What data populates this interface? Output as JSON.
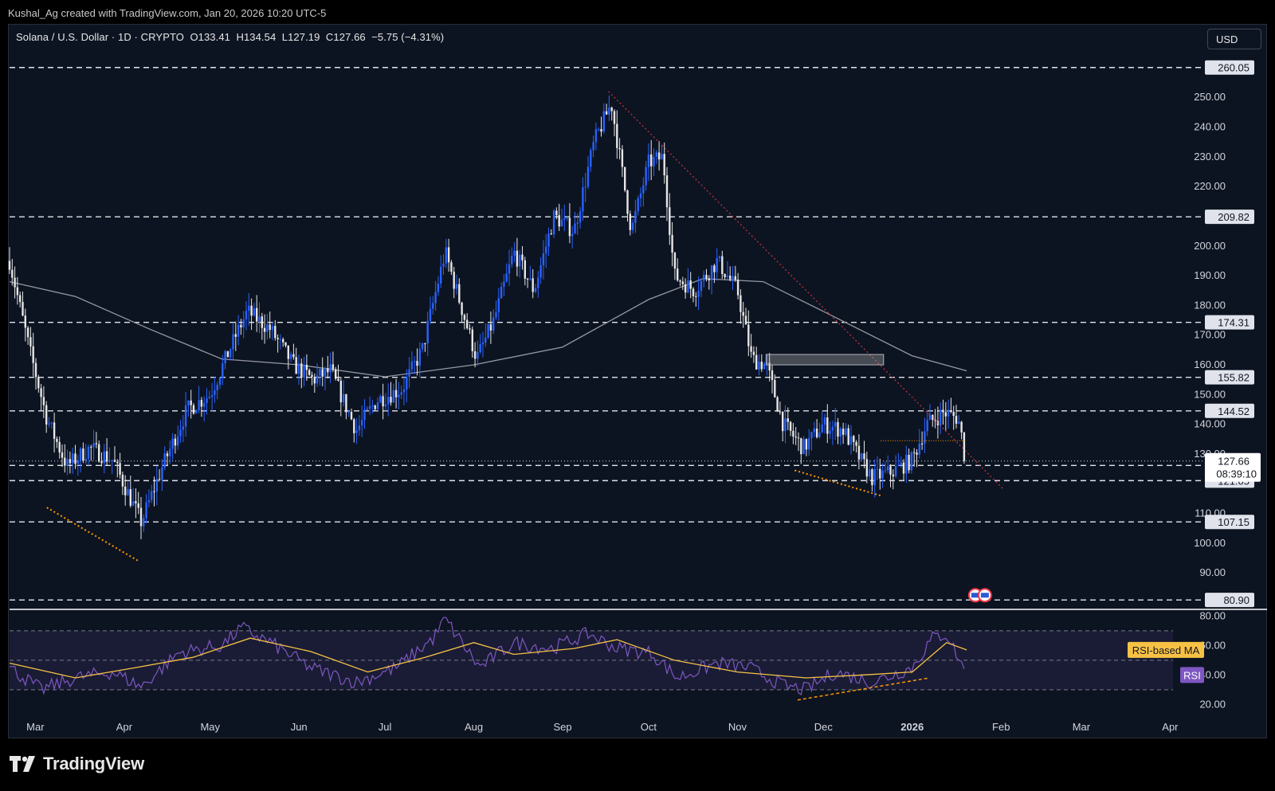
{
  "header": {
    "credit": "Kushal_Ag created with TradingView.com, Jan 20, 2026 10:20 UTC-5"
  },
  "legend": {
    "symbol": "Solana / U.S. Dollar · 1D · CRYPTO",
    "open": "O133.41",
    "high": "H134.54",
    "low": "L127.19",
    "close": "C127.66",
    "change": "−5.75 (−4.31%)"
  },
  "currency_button": "USD",
  "colors": {
    "background": "#0d1421",
    "up_candle": "#2962ff",
    "down_candle": "#e6e6e6",
    "trendline": "#f23645",
    "ma": "#9598a1",
    "rsi": "#7e57c2",
    "rsi_ma": "#f7c244",
    "support": "#ff9800"
  },
  "footer": {
    "brand": "TradingView"
  },
  "chart_data": [
    {
      "type": "candlestick",
      "title": "Solana / U.S. Dollar · 1D · CRYPTO",
      "x_tick_labels": [
        "Mar",
        "Apr",
        "May",
        "Jun",
        "Jul",
        "Aug",
        "Sep",
        "Oct",
        "Nov",
        "Dec",
        "2026",
        "Feb",
        "Mar",
        "Apr"
      ],
      "y_tick_labels": [
        "250.00",
        "240.00",
        "230.00",
        "220.00",
        "200.00",
        "190.00",
        "180.00",
        "170.00",
        "160.00",
        "150.00",
        "140.00",
        "130.00",
        "110.00",
        "100.00",
        "90.00"
      ],
      "ylim": [
        78,
        264
      ],
      "price_levels": [
        "260.05",
        "209.82",
        "174.31",
        "155.82",
        "144.52",
        "126.15",
        "121.05",
        "107.15",
        "80.90"
      ],
      "last_price": {
        "value": "127.66",
        "countdown": "08:39:10"
      },
      "price_path": [
        {
          "date": "2025-02-20",
          "close": 195
        },
        {
          "date": "2025-02-27",
          "close": 165
        },
        {
          "date": "2025-03-05",
          "close": 142
        },
        {
          "date": "2025-03-12",
          "close": 126
        },
        {
          "date": "2025-03-20",
          "close": 132
        },
        {
          "date": "2025-03-28",
          "close": 128
        },
        {
          "date": "2025-04-07",
          "close": 107
        },
        {
          "date": "2025-04-14",
          "close": 125
        },
        {
          "date": "2025-04-23",
          "close": 145
        },
        {
          "date": "2025-05-01",
          "close": 150
        },
        {
          "date": "2025-05-10",
          "close": 170
        },
        {
          "date": "2025-05-14",
          "close": 178
        },
        {
          "date": "2025-05-22",
          "close": 172
        },
        {
          "date": "2025-05-30",
          "close": 160
        },
        {
          "date": "2025-06-06",
          "close": 155
        },
        {
          "date": "2025-06-12",
          "close": 158
        },
        {
          "date": "2025-06-21",
          "close": 138
        },
        {
          "date": "2025-06-28",
          "close": 148
        },
        {
          "date": "2025-07-07",
          "close": 152
        },
        {
          "date": "2025-07-14",
          "close": 165
        },
        {
          "date": "2025-07-22",
          "close": 198
        },
        {
          "date": "2025-08-02",
          "close": 162
        },
        {
          "date": "2025-08-08",
          "close": 175
        },
        {
          "date": "2025-08-15",
          "close": 198
        },
        {
          "date": "2025-08-22",
          "close": 185
        },
        {
          "date": "2025-08-29",
          "close": 210
        },
        {
          "date": "2025-09-05",
          "close": 205
        },
        {
          "date": "2025-09-12",
          "close": 235
        },
        {
          "date": "2025-09-18",
          "close": 248
        },
        {
          "date": "2025-09-25",
          "close": 205
        },
        {
          "date": "2025-10-01",
          "close": 228
        },
        {
          "date": "2025-10-06",
          "close": 230
        },
        {
          "date": "2025-10-10",
          "close": 190
        },
        {
          "date": "2025-10-17",
          "close": 185
        },
        {
          "date": "2025-10-25",
          "close": 195
        },
        {
          "date": "2025-11-01",
          "close": 185
        },
        {
          "date": "2025-11-06",
          "close": 162
        },
        {
          "date": "2025-11-11",
          "close": 160
        },
        {
          "date": "2025-11-17",
          "close": 140
        },
        {
          "date": "2025-11-24",
          "close": 132
        },
        {
          "date": "2025-12-01",
          "close": 140
        },
        {
          "date": "2025-12-08",
          "close": 138
        },
        {
          "date": "2025-12-14",
          "close": 128
        },
        {
          "date": "2025-12-18",
          "close": 122
        },
        {
          "date": "2025-12-25",
          "close": 124
        },
        {
          "date": "2026-01-01",
          "close": 128
        },
        {
          "date": "2026-01-06",
          "close": 140
        },
        {
          "date": "2026-01-12",
          "close": 144
        },
        {
          "date": "2026-01-17",
          "close": 142
        },
        {
          "date": "2026-01-20",
          "close": 127.66
        }
      ],
      "moving_average": [
        {
          "date": "2025-02-20",
          "value": 188
        },
        {
          "date": "2025-03-15",
          "value": 183
        },
        {
          "date": "2025-04-10",
          "value": 172
        },
        {
          "date": "2025-05-05",
          "value": 162
        },
        {
          "date": "2025-06-01",
          "value": 160
        },
        {
          "date": "2025-07-01",
          "value": 156
        },
        {
          "date": "2025-08-01",
          "value": 160
        },
        {
          "date": "2025-09-01",
          "value": 166
        },
        {
          "date": "2025-10-01",
          "value": 182
        },
        {
          "date": "2025-10-20",
          "value": 189
        },
        {
          "date": "2025-11-10",
          "value": 188
        },
        {
          "date": "2025-12-01",
          "value": 178
        },
        {
          "date": "2026-01-01",
          "value": 163
        },
        {
          "date": "2026-01-20",
          "value": 158
        }
      ],
      "trendline": {
        "from": {
          "date": "2025-09-17",
          "price": 252
        },
        "to": {
          "date": "2026-02-02",
          "price": 118
        }
      }
    },
    {
      "type": "line",
      "title": "RSI",
      "y_tick_labels": [
        "80.00",
        "60.00",
        "40.00",
        "20.00"
      ],
      "ylim": [
        18,
        84
      ],
      "series": [
        {
          "name": "RSI",
          "values": [
            {
              "date": "2025-02-20",
              "value": 45
            },
            {
              "date": "2025-03-03",
              "value": 30
            },
            {
              "date": "2025-03-15",
              "value": 38
            },
            {
              "date": "2025-03-28",
              "value": 42
            },
            {
              "date": "2025-04-07",
              "value": 32
            },
            {
              "date": "2025-04-20",
              "value": 55
            },
            {
              "date": "2025-05-05",
              "value": 60
            },
            {
              "date": "2025-05-12",
              "value": 72
            },
            {
              "date": "2025-05-22",
              "value": 62
            },
            {
              "date": "2025-06-05",
              "value": 45
            },
            {
              "date": "2025-06-21",
              "value": 35
            },
            {
              "date": "2025-07-05",
              "value": 45
            },
            {
              "date": "2025-07-18",
              "value": 65
            },
            {
              "date": "2025-07-22",
              "value": 78
            },
            {
              "date": "2025-08-03",
              "value": 45
            },
            {
              "date": "2025-08-15",
              "value": 62
            },
            {
              "date": "2025-08-28",
              "value": 58
            },
            {
              "date": "2025-09-10",
              "value": 68
            },
            {
              "date": "2025-09-20",
              "value": 58
            },
            {
              "date": "2025-10-02",
              "value": 55
            },
            {
              "date": "2025-10-11",
              "value": 38
            },
            {
              "date": "2025-10-25",
              "value": 48
            },
            {
              "date": "2025-11-05",
              "value": 45
            },
            {
              "date": "2025-11-18",
              "value": 32
            },
            {
              "date": "2025-11-25",
              "value": 30
            },
            {
              "date": "2025-12-05",
              "value": 42
            },
            {
              "date": "2025-12-18",
              "value": 35
            },
            {
              "date": "2026-01-01",
              "value": 45
            },
            {
              "date": "2026-01-08",
              "value": 65
            },
            {
              "date": "2026-01-13",
              "value": 68
            },
            {
              "date": "2026-01-20",
              "value": 40
            }
          ]
        },
        {
          "name": "RSI-based MA",
          "values": [
            {
              "date": "2025-02-20",
              "value": 48
            },
            {
              "date": "2025-03-15",
              "value": 38
            },
            {
              "date": "2025-04-05",
              "value": 45
            },
            {
              "date": "2025-04-25",
              "value": 52
            },
            {
              "date": "2025-05-15",
              "value": 65
            },
            {
              "date": "2025-06-05",
              "value": 56
            },
            {
              "date": "2025-06-25",
              "value": 42
            },
            {
              "date": "2025-07-15",
              "value": 52
            },
            {
              "date": "2025-08-01",
              "value": 62
            },
            {
              "date": "2025-08-15",
              "value": 54
            },
            {
              "date": "2025-09-05",
              "value": 58
            },
            {
              "date": "2025-09-20",
              "value": 64
            },
            {
              "date": "2025-10-10",
              "value": 50
            },
            {
              "date": "2025-11-01",
              "value": 42
            },
            {
              "date": "2025-11-25",
              "value": 38
            },
            {
              "date": "2025-12-15",
              "value": 40
            },
            {
              "date": "2026-01-01",
              "value": 42
            },
            {
              "date": "2026-01-13",
              "value": 62
            },
            {
              "date": "2026-01-20",
              "value": 57
            }
          ]
        }
      ],
      "levels": [
        70,
        50,
        30
      ]
    }
  ]
}
